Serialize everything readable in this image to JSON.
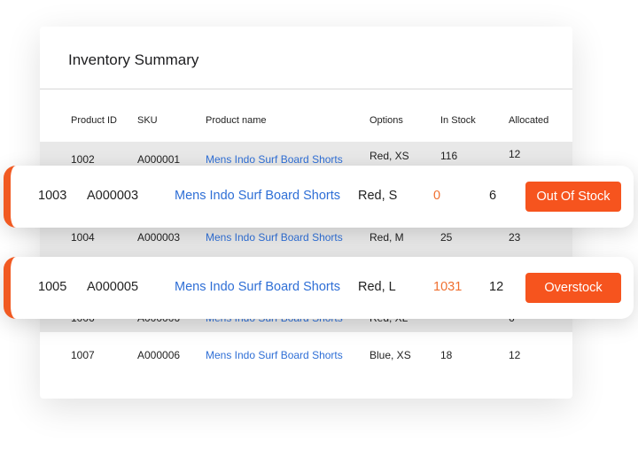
{
  "title": "Inventory Summary",
  "headers": [
    "Product ID",
    "SKU",
    "Product name",
    "Options",
    "In Stock",
    "Allocated"
  ],
  "rows": [
    [
      "1002",
      "A000001",
      "Mens Indo Surf Board Shorts",
      "Red, XS",
      "116",
      "12"
    ],
    [
      "1004",
      "A000003",
      "Mens Indo Surf Board Shorts",
      "Red, M",
      "25",
      "23"
    ],
    [
      "1006",
      "A000006",
      "Mens Indo Surf Board Shorts",
      "Red, XL",
      "",
      "6"
    ],
    [
      "1007",
      "A000006",
      "Mens Indo Surf Board Shorts",
      "Blue, XS",
      "18",
      "12"
    ]
  ],
  "highlighted": [
    {
      "id": "1003",
      "sku": "A000003",
      "name": "Mens Indo Surf Board Shorts",
      "options": "Red, S",
      "stock": "0",
      "allocated": "6",
      "status": "Out Of Stock"
    },
    {
      "id": "1005",
      "sku": "A000005",
      "name": "Mens Indo Surf Board Shorts",
      "options": "Red, L",
      "stock": "1031",
      "allocated": "12",
      "status": "Overstock"
    }
  ],
  "colors": {
    "accent": "#f6541e",
    "link": "#2f6fd6",
    "stock_alert": "#f07030"
  }
}
